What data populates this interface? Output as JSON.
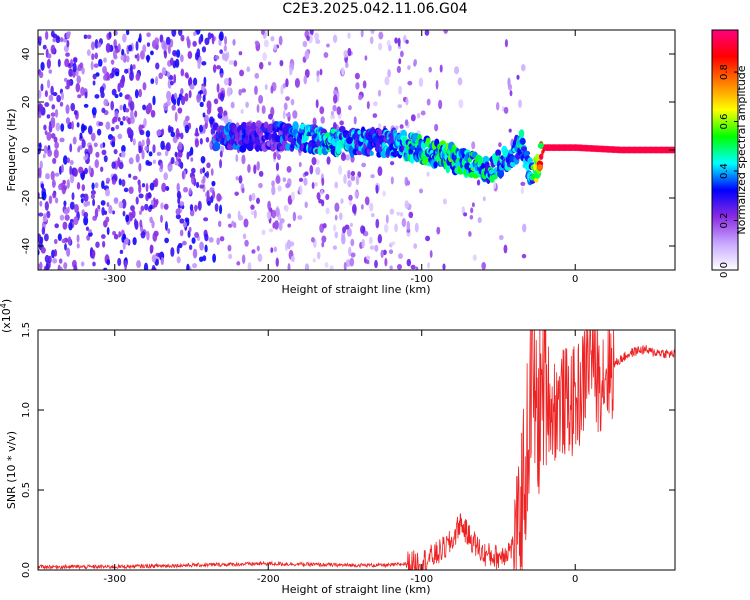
{
  "figure_title": "C2E3.2025.042.11.06.G04",
  "chart_data": [
    {
      "type": "heatmap",
      "title": "C2E3.2025.042.11.06.G04",
      "xlabel": "Height of straight line (km)",
      "ylabel": "Frequency (Hz)",
      "xlim": [
        -350,
        65
      ],
      "ylim": [
        -50,
        50
      ],
      "x_ticks": [
        -300,
        -200,
        -100,
        0
      ],
      "y_ticks": [
        -40,
        -20,
        0,
        20,
        40
      ],
      "colorbar": {
        "label": "Normalized spectral amplitude",
        "range": [
          0,
          0.97
        ],
        "ticks": [
          0.0,
          0.2,
          0.4,
          0.6,
          0.8
        ],
        "tick_labels": [
          "0.0",
          "0.2",
          "0.4",
          "0.6",
          "0.8"
        ],
        "colormap": [
          "#ffffff",
          "#c8a8ff",
          "#8a2be2",
          "#0000ff",
          "#00ffff",
          "#00ff00",
          "#ffff00",
          "#ff8000",
          "#ff0000",
          "#ff0080"
        ]
      },
      "ridge": [
        {
          "x": -230,
          "freq": 5,
          "amplitude": 0.35
        },
        {
          "x": -200,
          "freq": 6,
          "amplitude": 0.3
        },
        {
          "x": -160,
          "freq": 4,
          "amplitude": 0.45
        },
        {
          "x": -130,
          "freq": 3,
          "amplitude": 0.35
        },
        {
          "x": -110,
          "freq": 2,
          "amplitude": 0.45
        },
        {
          "x": -90,
          "freq": -2,
          "amplitude": 0.5
        },
        {
          "x": -70,
          "freq": -5,
          "amplitude": 0.5
        },
        {
          "x": -55,
          "freq": -8,
          "amplitude": 0.45
        },
        {
          "x": -45,
          "freq": -4,
          "amplitude": 0.4
        },
        {
          "x": -35,
          "freq": 2,
          "amplitude": 0.45
        },
        {
          "x": -28,
          "freq": -12,
          "amplitude": 0.45
        },
        {
          "x": -20,
          "freq": 1,
          "amplitude": 0.95
        },
        {
          "x": 0,
          "freq": 1,
          "amplitude": 0.95
        },
        {
          "x": 30,
          "freq": 0,
          "amplitude": 0.95
        },
        {
          "x": 65,
          "freq": 0,
          "amplitude": 0.95
        }
      ]
    },
    {
      "type": "line",
      "xlabel": "Height of straight line (km)",
      "ylabel": "SNR (10 * v/v)",
      "y_multiplier": "(x10",
      "y_multiplier_exp": "4",
      "y_multiplier_close": ")",
      "xlim": [
        -350,
        65
      ],
      "ylim": [
        0,
        1.5
      ],
      "x_ticks": [
        -300,
        -200,
        -100,
        0
      ],
      "y_ticks": [
        0.0,
        0.5,
        1.0,
        1.5
      ],
      "y_tick_labels": [
        "0.0",
        "0.5",
        "1.0",
        "1.5"
      ],
      "line_color": "#ee2222",
      "series": [
        {
          "x": [
            -350,
            -300,
            -250,
            -200,
            -150,
            -120,
            -100,
            -90,
            -80,
            -75,
            -70,
            -60,
            -50,
            -40,
            -35,
            -30,
            -28,
            -25,
            -20,
            -15,
            -10,
            -5,
            0,
            5,
            10,
            15,
            20,
            25,
            30,
            35,
            40,
            45,
            50,
            55,
            60,
            65
          ],
          "values": [
            0.02,
            0.02,
            0.03,
            0.04,
            0.03,
            0.03,
            0.05,
            0.1,
            0.18,
            0.3,
            0.22,
            0.1,
            0.08,
            0.15,
            0.4,
            0.9,
            1.3,
            0.9,
            1.2,
            1.0,
            1.05,
            1.05,
            1.05,
            1.15,
            1.4,
            1.2,
            1.25,
            1.28,
            1.32,
            1.35,
            1.37,
            1.38,
            1.36,
            1.36,
            1.35,
            1.35
          ]
        }
      ]
    }
  ]
}
